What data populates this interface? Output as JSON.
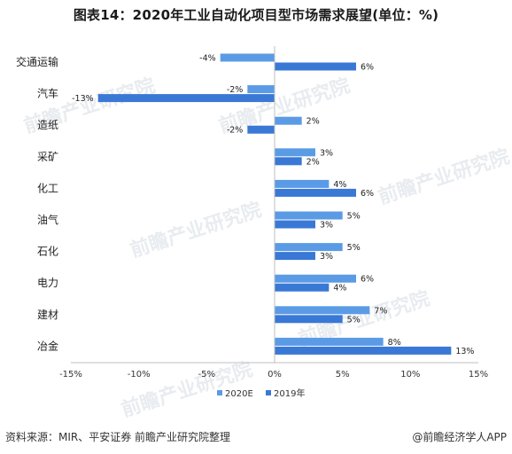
{
  "title": "图表14：2020年工业自动化项目型市场需求展望(单位：%)",
  "footer": {
    "source": "资料来源：MIR、平安证券 前瞻产业研究院整理",
    "credit": "@前瞻经济学人APP"
  },
  "watermark": "前瞻产业研究院",
  "chart_data": {
    "type": "bar",
    "orientation": "horizontal",
    "categories": [
      "交通运输",
      "汽车",
      "造纸",
      "采矿",
      "化工",
      "油气",
      "石化",
      "电力",
      "建材",
      "冶金"
    ],
    "series": [
      {
        "name": "2020E",
        "values": [
          -4,
          -2,
          2,
          3,
          4,
          5,
          5,
          6,
          7,
          8
        ],
        "labels": [
          "-4%",
          "-2%",
          "2%",
          "3%",
          "4%",
          "5%",
          "5%",
          "6%",
          "7%",
          "8%"
        ],
        "color": "#5b9be6"
      },
      {
        "name": "2019年",
        "values": [
          6,
          -13,
          -2,
          2,
          6,
          3,
          3,
          4,
          5,
          13
        ],
        "labels": [
          "6%",
          "-13%",
          "-2%",
          "2%",
          "6%",
          "3%",
          "3%",
          "4%",
          "5%",
          "13%"
        ],
        "color": "#3a78d6"
      }
    ],
    "xlim": [
      -15,
      15
    ],
    "x_ticks": [
      -15,
      -10,
      -5,
      0,
      5,
      10,
      15
    ],
    "x_tick_labels": [
      "-15%",
      "-10%",
      "-5%",
      "0%",
      "5%",
      "10%",
      "15%"
    ],
    "grid": false,
    "legend_position": "bottom"
  }
}
